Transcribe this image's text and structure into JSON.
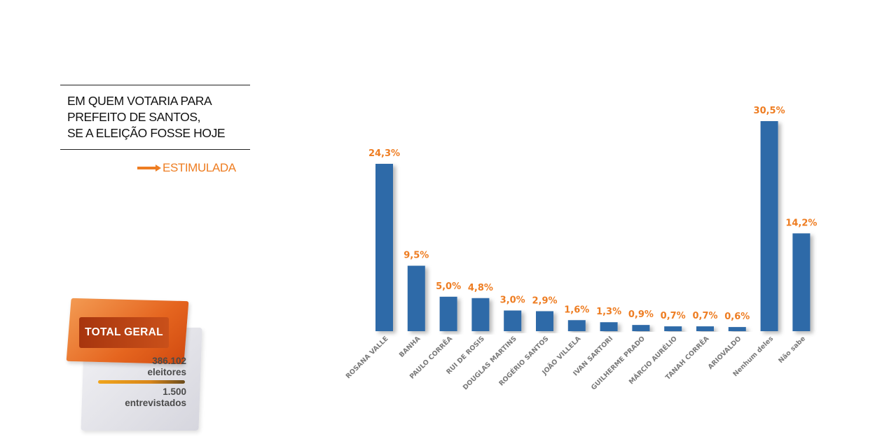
{
  "header": {
    "title_lines": [
      "EM QUEM VOTARIA PARA",
      "PREFEITO DE SANTOS,",
      "SE A ELEIÇÃO FOSSE HOJE"
    ],
    "tag": "ESTIMULADA"
  },
  "badge": {
    "label": "TOTAL GERAL",
    "voters_value": "386.102",
    "voters_label": "eleitores",
    "interviews_value": "1.500",
    "interviews_label": "entrevistados"
  },
  "colors": {
    "bar": "#2e6aa8",
    "accent": "#ee7d22"
  },
  "icons": {
    "tag_arrow": "arrow-right-icon"
  },
  "chart_data": {
    "type": "bar",
    "categories": [
      "ROSANA VALLE",
      "BANHA",
      "PAULO CORRÊA",
      "RUI DE ROSIS",
      "DOUGLAS MARTINS",
      "ROGÉRIO SANTOS",
      "JOÃO VILLELA",
      "IVAN SARTORI",
      "GUILHERME PRADO",
      "MÁRCIO AURÉLIO",
      "TANAH CORRÊA",
      "ARIOVALDO",
      "Nenhum deles",
      "Não sabe"
    ],
    "values": [
      24.3,
      9.5,
      5.0,
      4.8,
      3.0,
      2.9,
      1.6,
      1.3,
      0.9,
      0.7,
      0.7,
      0.6,
      30.5,
      14.2
    ],
    "data_labels": [
      "24,3%",
      "9,5%",
      "5,0%",
      "4,8%",
      "3,0%",
      "2,9%",
      "1,6%",
      "1,3%",
      "0,9%",
      "0,7%",
      "0,7%",
      "0,6%",
      "30,5%",
      "14,2%"
    ],
    "ylim": [
      0,
      30.5
    ],
    "grid": false,
    "legend": "none"
  }
}
